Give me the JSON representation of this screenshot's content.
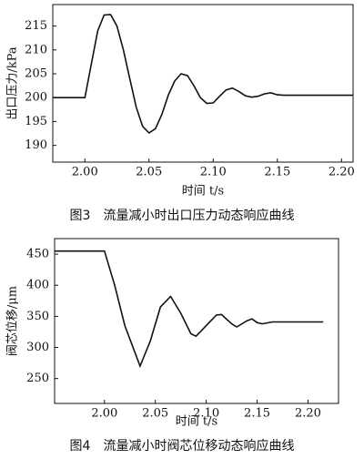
{
  "chart_data": [
    {
      "type": "line",
      "title": "图3　流量减小时出口压力动态响应曲线",
      "x_label": "时间 t/s",
      "y_label": "出口压力/kPa",
      "xlim": [
        1.975,
        2.209
      ],
      "ylim": [
        186.5,
        219.5
      ],
      "xticks": [
        {
          "value": 2.0,
          "label": "2.00"
        },
        {
          "value": 2.05,
          "label": "2.05"
        },
        {
          "value": 2.1,
          "label": "2.10"
        },
        {
          "value": 2.15,
          "label": "2.15"
        },
        {
          "value": 2.2,
          "label": "2.20"
        }
      ],
      "yticks": [
        190,
        195,
        200,
        205,
        210,
        215
      ],
      "x": [
        1.975,
        2.0,
        2.005,
        2.01,
        2.015,
        2.02,
        2.025,
        2.03,
        2.035,
        2.04,
        2.045,
        2.05,
        2.055,
        2.06,
        2.065,
        2.07,
        2.075,
        2.08,
        2.085,
        2.09,
        2.095,
        2.1,
        2.105,
        2.11,
        2.115,
        2.12,
        2.125,
        2.13,
        2.135,
        2.14,
        2.145,
        2.15,
        2.155,
        2.16,
        2.209
      ],
      "values": [
        200,
        200,
        207,
        214,
        217.3,
        217.4,
        215,
        210,
        204,
        198,
        194,
        192.6,
        193.5,
        196.5,
        200.5,
        203.5,
        205,
        204.6,
        202.5,
        200,
        198.8,
        198.9,
        200.3,
        201.6,
        202,
        201.3,
        200.4,
        200.1,
        200.3,
        200.8,
        201,
        200.6,
        200.5,
        200.5,
        200.5
      ],
      "color": "#111111"
    },
    {
      "type": "line",
      "title": "图4　流量减小时阀芯位移动态响应曲线",
      "x_label": "时间 t/s",
      "y_label": "阀芯位移/μm",
      "xlim": [
        1.951,
        2.23
      ],
      "ylim": [
        210,
        475
      ],
      "xticks": [
        {
          "value": 2.0,
          "label": "2.00"
        },
        {
          "value": 2.05,
          "label": "2.05"
        },
        {
          "value": 2.1,
          "label": "2.10"
        },
        {
          "value": 2.15,
          "label": "2.15"
        },
        {
          "value": 2.2,
          "label": "2.20"
        }
      ],
      "yticks": [
        250,
        300,
        350,
        400,
        450
      ],
      "x": [
        1.951,
        2.0,
        2.01,
        2.02,
        2.035,
        2.045,
        2.055,
        2.065,
        2.075,
        2.085,
        2.09,
        2.1,
        2.11,
        2.115,
        2.125,
        2.13,
        2.14,
        2.145,
        2.15,
        2.155,
        2.165,
        2.215
      ],
      "values": [
        455,
        455,
        400,
        335,
        270,
        310,
        365,
        382,
        355,
        322,
        318,
        335,
        352,
        353,
        338,
        333,
        343,
        346,
        340,
        338,
        341,
        341
      ],
      "color": "#111111"
    }
  ]
}
